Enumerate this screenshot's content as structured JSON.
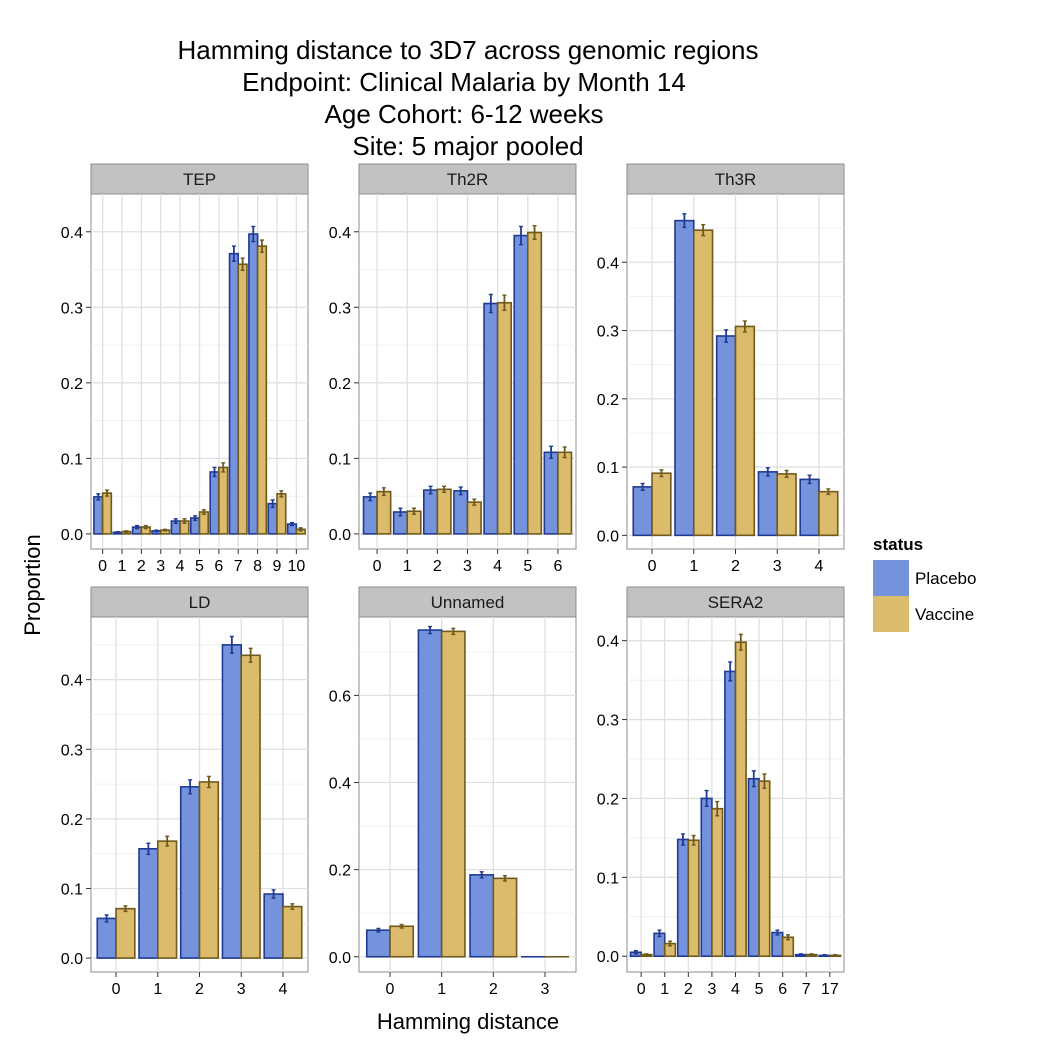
{
  "colors": {
    "placebo_fill": "#7592dc",
    "placebo_stroke": "#1f3a93",
    "vaccine_fill": "#dcbb6d",
    "vaccine_stroke": "#6f5a1c",
    "panel_bg": "#ffffff",
    "grid": "#ebebeb",
    "strip_bg": "#c2c2c2"
  },
  "chart_data": {
    "type": "bar",
    "title": [
      "Hamming distance to 3D7 across genomic regions",
      "Endpoint: Clinical Malaria by Month 14",
      "Age Cohort: 6-12 weeks",
      "Site: 5 major pooled"
    ],
    "xlabel": "Hamming distance",
    "ylabel": "Proportion",
    "legend": {
      "title": "status",
      "position": "right",
      "entries": [
        "Placebo",
        "Vaccine"
      ]
    },
    "grid": true,
    "panels": [
      {
        "name": "TEP",
        "categories": [
          "0",
          "1",
          "2",
          "3",
          "4",
          "5",
          "6",
          "7",
          "8",
          "9",
          "10"
        ],
        "ylim": [
          -0.02,
          0.45
        ],
        "yticks": [
          0.0,
          0.1,
          0.2,
          0.3,
          0.4
        ],
        "ytick_labels": [
          "0.0",
          "0.1",
          "0.2",
          "0.3",
          "0.4"
        ],
        "series": [
          {
            "name": "Placebo",
            "values": [
              0.049,
              0.002,
              0.009,
              0.004,
              0.017,
              0.021,
              0.082,
              0.371,
              0.397,
              0.04,
              0.013
            ],
            "errors": [
              0.004,
              0.001,
              0.002,
              0.001,
              0.003,
              0.003,
              0.006,
              0.01,
              0.01,
              0.005,
              0.002
            ]
          },
          {
            "name": "Vaccine",
            "values": [
              0.054,
              0.003,
              0.009,
              0.005,
              0.017,
              0.029,
              0.088,
              0.357,
              0.381,
              0.053,
              0.006
            ],
            "errors": [
              0.004,
              0.001,
              0.002,
              0.001,
              0.003,
              0.003,
              0.006,
              0.008,
              0.008,
              0.004,
              0.002
            ]
          }
        ]
      },
      {
        "name": "Th2R",
        "categories": [
          "0",
          "1",
          "2",
          "3",
          "4",
          "5",
          "6"
        ],
        "ylim": [
          -0.02,
          0.45
        ],
        "yticks": [
          0.0,
          0.1,
          0.2,
          0.3,
          0.4
        ],
        "ytick_labels": [
          "0.0",
          "0.1",
          "0.2",
          "0.3",
          "0.4"
        ],
        "series": [
          {
            "name": "Placebo",
            "values": [
              0.049,
              0.029,
              0.058,
              0.057,
              0.305,
              0.395,
              0.108
            ],
            "errors": [
              0.005,
              0.005,
              0.005,
              0.005,
              0.012,
              0.012,
              0.008
            ]
          },
          {
            "name": "Vaccine",
            "values": [
              0.056,
              0.03,
              0.059,
              0.042,
              0.306,
              0.399,
              0.108
            ],
            "errors": [
              0.005,
              0.004,
              0.004,
              0.004,
              0.01,
              0.009,
              0.007
            ]
          }
        ]
      },
      {
        "name": "Th3R",
        "categories": [
          "0",
          "1",
          "2",
          "3",
          "4"
        ],
        "ylim": [
          -0.02,
          0.5
        ],
        "yticks": [
          0.0,
          0.1,
          0.2,
          0.3,
          0.4
        ],
        "ytick_labels": [
          "0.0",
          "0.1",
          "0.2",
          "0.3",
          "0.4"
        ],
        "series": [
          {
            "name": "Placebo",
            "values": [
              0.071,
              0.461,
              0.292,
              0.093,
              0.082
            ],
            "errors": [
              0.005,
              0.01,
              0.009,
              0.006,
              0.006
            ]
          },
          {
            "name": "Vaccine",
            "values": [
              0.091,
              0.447,
              0.306,
              0.09,
              0.064
            ],
            "errors": [
              0.005,
              0.008,
              0.008,
              0.005,
              0.004
            ]
          }
        ]
      },
      {
        "name": "LD",
        "categories": [
          "0",
          "1",
          "2",
          "3",
          "4"
        ],
        "ylim": [
          -0.02,
          0.49
        ],
        "yticks": [
          0.0,
          0.1,
          0.2,
          0.3,
          0.4
        ],
        "ytick_labels": [
          "0.0",
          "0.1",
          "0.2",
          "0.3",
          "0.4"
        ],
        "series": [
          {
            "name": "Placebo",
            "values": [
              0.057,
              0.157,
              0.246,
              0.45,
              0.092
            ],
            "errors": [
              0.005,
              0.008,
              0.01,
              0.012,
              0.006
            ]
          },
          {
            "name": "Vaccine",
            "values": [
              0.071,
              0.168,
              0.253,
              0.435,
              0.074
            ],
            "errors": [
              0.004,
              0.007,
              0.008,
              0.01,
              0.004
            ]
          }
        ]
      },
      {
        "name": "Unnamed",
        "categories": [
          "0",
          "1",
          "2",
          "3"
        ],
        "ylim": [
          -0.035,
          0.78
        ],
        "yticks": [
          0.0,
          0.2,
          0.4,
          0.6
        ],
        "ytick_labels": [
          "0.0",
          "0.2",
          "0.4",
          "0.6"
        ],
        "series": [
          {
            "name": "Placebo",
            "values": [
              0.061,
              0.75,
              0.188,
              0.0
            ],
            "errors": [
              0.004,
              0.008,
              0.007,
              0.0
            ]
          },
          {
            "name": "Vaccine",
            "values": [
              0.07,
              0.747,
              0.18,
              0.0
            ],
            "errors": [
              0.004,
              0.007,
              0.006,
              0.0
            ]
          }
        ]
      },
      {
        "name": "SERA2",
        "categories": [
          "0",
          "1",
          "2",
          "3",
          "4",
          "5",
          "6",
          "7",
          "17"
        ],
        "ylim": [
          -0.02,
          0.43
        ],
        "yticks": [
          0.0,
          0.1,
          0.2,
          0.3,
          0.4
        ],
        "ytick_labels": [
          "0.0",
          "0.1",
          "0.2",
          "0.3",
          "0.4"
        ],
        "series": [
          {
            "name": "Placebo",
            "values": [
              0.005,
              0.029,
              0.148,
              0.2,
              0.361,
              0.225,
              0.03,
              0.002,
              0.001
            ],
            "errors": [
              0.002,
              0.004,
              0.007,
              0.01,
              0.012,
              0.01,
              0.003,
              0.001,
              0.001
            ]
          },
          {
            "name": "Vaccine",
            "values": [
              0.002,
              0.016,
              0.147,
              0.187,
              0.398,
              0.222,
              0.024,
              0.002,
              0.001
            ],
            "errors": [
              0.001,
              0.003,
              0.006,
              0.009,
              0.01,
              0.009,
              0.003,
              0.001,
              0.001
            ]
          }
        ]
      }
    ]
  }
}
